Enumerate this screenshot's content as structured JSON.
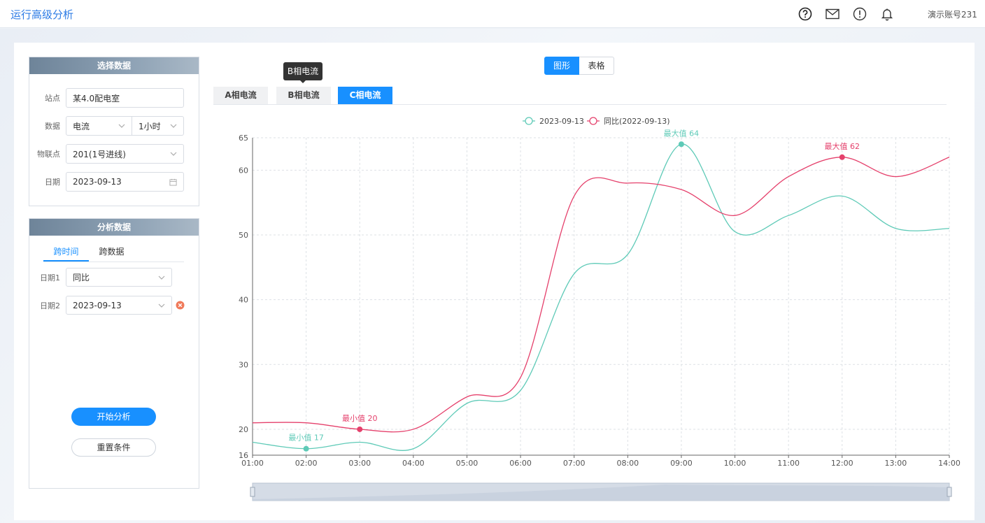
{
  "header": {
    "title": "运行高级分析",
    "account": "演示账号231"
  },
  "select_panel": {
    "title": "选择数据",
    "station_label": "站点",
    "station_value": "某4.0配电室",
    "data_label": "数据",
    "data_type": "电流",
    "interval": "1小时",
    "iot_label": "物联点",
    "iot_value": "201(1号进线)",
    "date_label": "日期",
    "date_value": "2023-09-13"
  },
  "analysis_panel": {
    "title": "分析数据",
    "tabs": [
      "跨时间",
      "跨数据"
    ],
    "date1_label": "日期1",
    "date1_value": "同比",
    "date2_label": "日期2",
    "date2_value": "2023-09-13",
    "start_button": "开始分析",
    "reset_button": "重置条件"
  },
  "view_toggle": {
    "chart": "图形",
    "table": "表格"
  },
  "phase_tabs": [
    "A相电流",
    "B相电流",
    "C相电流"
  ],
  "tooltip": "B相电流",
  "colors": {
    "accent": "#1890ff",
    "series1": "#5ecab7",
    "series2": "#e5416c"
  },
  "chart_data": {
    "type": "line",
    "x": [
      "01:00",
      "02:00",
      "03:00",
      "04:00",
      "05:00",
      "06:00",
      "07:00",
      "08:00",
      "09:00",
      "10:00",
      "11:00",
      "12:00",
      "13:00",
      "14:00"
    ],
    "ylim": [
      16,
      65
    ],
    "yticks": [
      16,
      20,
      30,
      40,
      50,
      60,
      65
    ],
    "grid": true,
    "legend_position": "top-center",
    "series": [
      {
        "name": "2023-09-13",
        "color": "#5ecab7",
        "values": [
          18,
          17,
          18,
          17,
          24,
          26,
          44,
          47,
          64,
          50.5,
          53,
          56,
          51,
          51
        ],
        "max": {
          "label": "最大值",
          "value": 64,
          "index": 8
        },
        "min": {
          "label": "最小值",
          "value": 17,
          "index": 1
        }
      },
      {
        "name": "同比(2022-09-13)",
        "color": "#e5416c",
        "values": [
          21,
          21,
          20,
          20,
          25,
          28,
          56,
          58,
          57,
          53,
          59,
          62,
          59,
          62
        ],
        "max": {
          "label": "最大值",
          "value": 62,
          "index": 11
        },
        "min": {
          "label": "最小值",
          "value": 20,
          "index": 2
        }
      }
    ]
  }
}
